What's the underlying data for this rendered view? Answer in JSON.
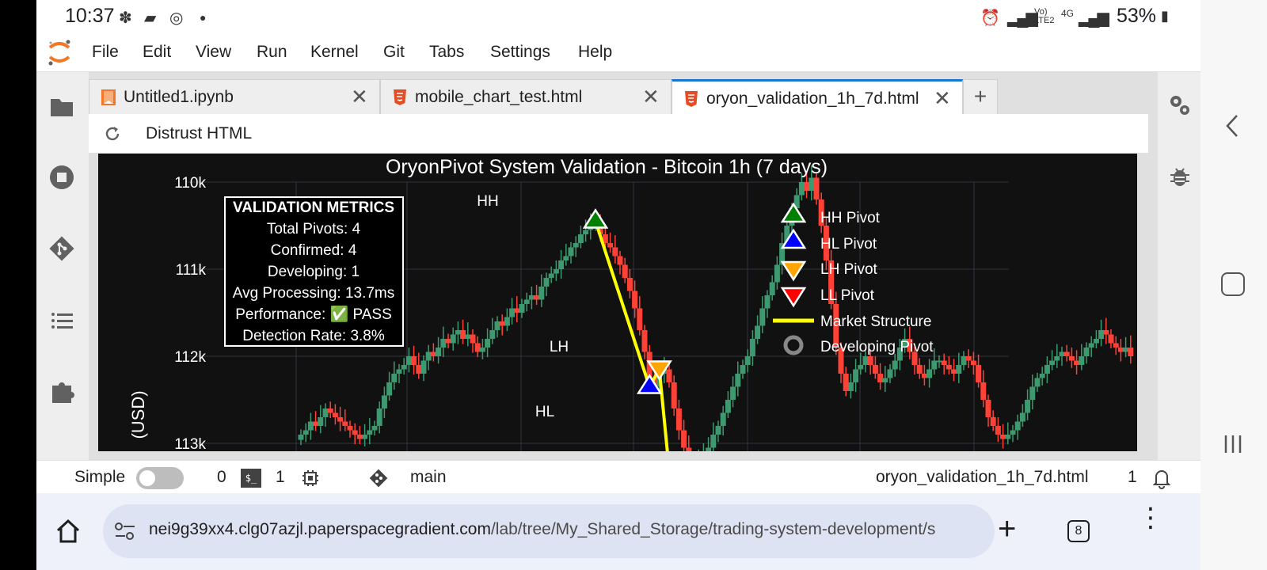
{
  "status_bar": {
    "time": "10:37",
    "battery": "53%",
    "network": "4G",
    "volte": "Vo) LTE2"
  },
  "menu": {
    "items": [
      "File",
      "Edit",
      "View",
      "Run",
      "Kernel",
      "Git",
      "Tabs",
      "Settings",
      "Help"
    ]
  },
  "tabs": [
    {
      "label": "Untitled1.ipynb",
      "icon": "notebook-icon"
    },
    {
      "label": "mobile_chart_test.html",
      "icon": "html5-icon"
    },
    {
      "label": "oryon_validation_1h_7d.html",
      "icon": "html5-icon",
      "active": true
    }
  ],
  "toolbar": {
    "distrust_label": "Distrust HTML"
  },
  "chart": {
    "title": "OryonPivot System Validation - Bitcoin 1h (7 days)",
    "ylabel": "(USD)",
    "yticks": [
      "113k",
      "112k",
      "111k",
      "110k"
    ],
    "metrics": {
      "heading": "VALIDATION METRICS",
      "lines": [
        "Total Pivots: 4",
        "Confirmed: 4",
        "Developing: 1",
        "Avg Processing: 13.7ms",
        "Performance: ✅ PASS",
        "Detection Rate: 3.8%"
      ]
    },
    "legend": [
      {
        "label": "HH Pivot",
        "color": "#008000",
        "marker": "triangle-up"
      },
      {
        "label": "HL Pivot",
        "color": "#0000ff",
        "marker": "triangle-up"
      },
      {
        "label": "LH Pivot",
        "color": "#ffa500",
        "marker": "triangle-down"
      },
      {
        "label": "LL Pivot",
        "color": "#ff0000",
        "marker": "triangle-down"
      },
      {
        "label": "Market Structure",
        "color": "#ffff00",
        "marker": "line"
      },
      {
        "label": "Developing Pivot",
        "color": "#888888",
        "marker": "ring"
      }
    ],
    "pivot_labels": {
      "hh": "HH",
      "hl": "HL",
      "lh": "LH"
    }
  },
  "chart_data": {
    "type": "candlestick",
    "title": "OryonPivot System Validation - Bitcoin 1h (7 days)",
    "ylabel": "(USD)",
    "ylim": [
      109700,
      113100
    ],
    "yticks": [
      110000,
      111000,
      112000,
      113000
    ],
    "pivots": [
      {
        "type": "HH",
        "index": 60,
        "price": 112550
      },
      {
        "type": "HL",
        "index": 71,
        "price": 110650
      },
      {
        "type": "LH",
        "index": 73,
        "price": 110850
      }
    ],
    "market_structure": [
      [
        60,
        112550
      ],
      [
        71,
        110650
      ],
      [
        73,
        110850
      ],
      [
        75,
        109700
      ]
    ],
    "candles_closes": [
      110100,
      110150,
      110250,
      110200,
      110300,
      110400,
      110350,
      110300,
      110250,
      110200,
      110150,
      110100,
      110050,
      110100,
      110150,
      110200,
      110400,
      110550,
      110700,
      110800,
      110850,
      110900,
      111000,
      110900,
      110800,
      110950,
      111050,
      111000,
      111100,
      111200,
      111150,
      111250,
      111300,
      111200,
      111250,
      111150,
      111050,
      111100,
      111200,
      111300,
      111400,
      111350,
      111450,
      111550,
      111500,
      111600,
      111650,
      111700,
      111650,
      111800,
      111900,
      111950,
      112000,
      112100,
      112150,
      112250,
      112300,
      112400,
      112450,
      112500,
      112550,
      112400,
      112300,
      112250,
      112150,
      112050,
      111900,
      111750,
      111550,
      111300,
      111050,
      110750,
      110650,
      110800,
      110850,
      110700,
      110400,
      110150,
      109950,
      109800,
      109750,
      109850,
      109900,
      109950,
      110100,
      110200,
      110350,
      110500,
      110650,
      110800,
      110900,
      111000,
      111200,
      111350,
      111550,
      111700,
      111850,
      112050,
      112300,
      112500,
      112700,
      112850,
      113000,
      112900,
      113050,
      112800,
      112500,
      112100,
      111600,
      111100,
      110800,
      110600,
      110700,
      110850,
      110900,
      111000,
      110900,
      110800,
      110700,
      110750,
      110850,
      110950,
      111100,
      111200,
      111050,
      110900,
      110800,
      110750,
      110850,
      110950,
      110950,
      110900,
      110850,
      110800,
      110900,
      111000,
      110950,
      110900,
      110700,
      110500,
      110300,
      110200,
      110100,
      110050,
      110100,
      110150,
      110250,
      110350,
      110500,
      110650,
      110750,
      110800,
      110900,
      110950,
      111000,
      111050,
      111000,
      110950,
      110900,
      111000,
      111100,
      111150,
      111200,
      111300,
      111250,
      111150,
      111100,
      111050,
      111100,
      111000
    ]
  },
  "statusbar": {
    "simple_label": "Simple",
    "count_a": "0",
    "count_b": "1",
    "branch": "main",
    "filename": "oryon_validation_1h_7d.html",
    "notifications": "1"
  },
  "browser": {
    "url_host": "nei9g39xx4.clg07azjl.paperspacegradient.com",
    "url_path": "/lab/tree/My_Shared_Storage/trading-system-development/s",
    "tab_count": "8"
  },
  "colors": {
    "accent": "#1976d2",
    "up": "#3d9970",
    "down": "#ff4136",
    "structure": "#ffff00"
  }
}
